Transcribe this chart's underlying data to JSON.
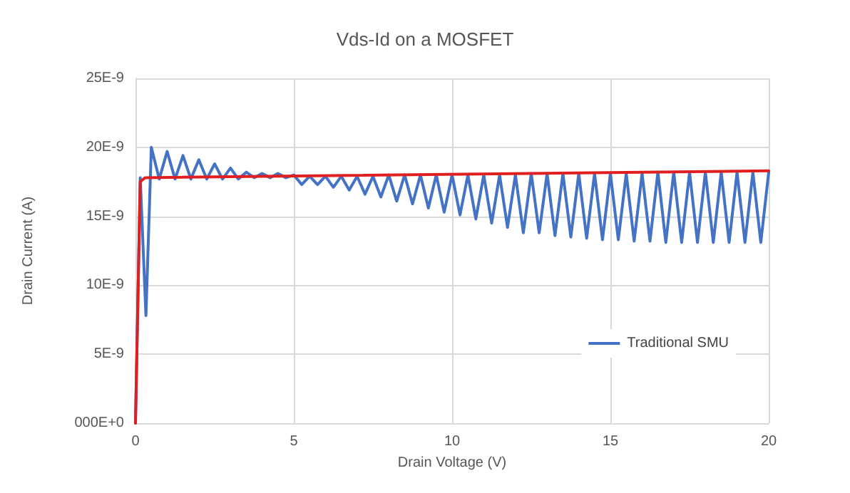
{
  "chart_data": {
    "type": "line",
    "title": "Vds-Id on a MOSFET",
    "xlabel": "Drain Voltage (V)",
    "ylabel": "Drain Current (A)",
    "xlim": [
      0,
      20
    ],
    "xticks": [
      0,
      5,
      10,
      15,
      20
    ],
    "ylim": [
      0,
      2.5e-08
    ],
    "yticks": [
      {
        "value": 0,
        "label": "000E+0"
      },
      {
        "value": 5e-09,
        "label": "5E-9"
      },
      {
        "value": 1e-08,
        "label": "10E-9"
      },
      {
        "value": 1.5e-08,
        "label": "15E-9"
      },
      {
        "value": 2e-08,
        "label": "20E-9"
      },
      {
        "value": 2.5e-08,
        "label": "25E-9"
      }
    ],
    "grid": true,
    "legend": "bottom right",
    "marker": "none",
    "line_style": "solid",
    "series": [
      {
        "name": "Traditional SMU",
        "color": "#4472c4",
        "x": [
          0,
          0.15,
          0.33,
          0.5,
          0.75,
          1.0,
          1.25,
          1.5,
          1.75,
          2.0,
          2.25,
          2.5,
          2.75,
          3.0,
          3.25,
          3.5,
          3.75,
          4.0,
          4.25,
          4.5,
          4.75,
          5.0,
          5.25,
          5.5,
          5.75,
          6.0,
          6.25,
          6.5,
          6.75,
          7.0,
          7.25,
          7.5,
          7.75,
          8.0,
          8.25,
          8.5,
          8.75,
          9.0,
          9.25,
          9.5,
          9.75,
          10.0,
          10.25,
          10.5,
          10.75,
          11.0,
          11.25,
          11.5,
          11.75,
          12.0,
          12.25,
          12.5,
          12.75,
          13.0,
          13.25,
          13.5,
          13.75,
          14.0,
          14.25,
          14.5,
          14.75,
          15.0,
          15.25,
          15.5,
          15.75,
          16.0,
          16.25,
          16.5,
          16.75,
          17.0,
          17.25,
          17.5,
          17.75,
          18.0,
          18.25,
          18.5,
          18.75,
          19.0,
          19.25,
          19.5,
          19.75,
          20.0
        ],
        "values": [
          0,
          1.78e-08,
          7.8e-09,
          2e-08,
          1.77e-08,
          1.97e-08,
          1.77e-08,
          1.94e-08,
          1.77e-08,
          1.91e-08,
          1.77e-08,
          1.88e-08,
          1.77e-08,
          1.85e-08,
          1.77e-08,
          1.82e-08,
          1.78e-08,
          1.81e-08,
          1.78e-08,
          1.81e-08,
          1.78e-08,
          1.8e-08,
          1.73e-08,
          1.79e-08,
          1.73e-08,
          1.79e-08,
          1.71e-08,
          1.79e-08,
          1.69e-08,
          1.79e-08,
          1.66e-08,
          1.79e-08,
          1.64e-08,
          1.8e-08,
          1.61e-08,
          1.8e-08,
          1.59e-08,
          1.8e-08,
          1.56e-08,
          1.8e-08,
          1.53e-08,
          1.8e-08,
          1.51e-08,
          1.8e-08,
          1.48e-08,
          1.8e-08,
          1.45e-08,
          1.8e-08,
          1.42e-08,
          1.8e-08,
          1.38e-08,
          1.81e-08,
          1.38e-08,
          1.81e-08,
          1.36e-08,
          1.81e-08,
          1.35e-08,
          1.81e-08,
          1.34e-08,
          1.81e-08,
          1.33e-08,
          1.81e-08,
          1.33e-08,
          1.81e-08,
          1.32e-08,
          1.81e-08,
          1.32e-08,
          1.82e-08,
          1.31e-08,
          1.82e-08,
          1.31e-08,
          1.82e-08,
          1.31e-08,
          1.82e-08,
          1.31e-08,
          1.82e-08,
          1.31e-08,
          1.82e-08,
          1.31e-08,
          1.82e-08,
          1.31e-08,
          1.82e-08
        ]
      },
      {
        "color": "#e02020",
        "x": [
          0,
          0.15,
          0.3,
          20
        ],
        "values": [
          0,
          1.75e-08,
          1.78e-08,
          1.83e-08
        ]
      }
    ]
  }
}
